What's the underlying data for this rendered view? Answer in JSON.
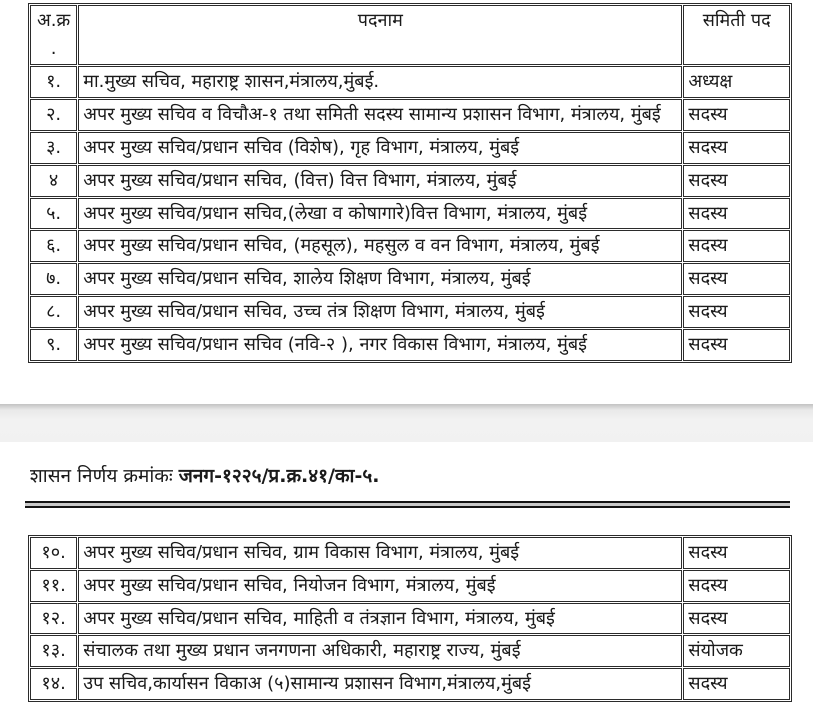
{
  "colors": {
    "text": "#1a1a1a",
    "table_border": "#2b2b2b",
    "page_band": "#f1f1f1",
    "band_edge": "#c3c3c3",
    "rule": "#141414",
    "background": "#ffffff"
  },
  "table1": {
    "header": {
      "sr_line1": "अ.क्र",
      "sr_line2": ".",
      "designation": "पदनाम",
      "post": "समिती पद"
    },
    "rows": [
      {
        "sr": "१.",
        "designation": "मा.मुख्य सचिव, महाराष्ट्र शासन,मंत्रालय,मुंबई.",
        "post": "अध्यक्ष"
      },
      {
        "sr": "२.",
        "designation": "अपर मुख्य सचिव व विचौअ-१ तथा समिती सदस्य सामान्य प्रशासन विभाग, मंत्रालय, मुंबई",
        "post": "सदस्य"
      },
      {
        "sr": "३.",
        "designation": "अपर मुख्य सचिव/प्रधान सचिव (विशेष), गृह विभाग, मंत्रालय, मुंबई",
        "post": "सदस्य"
      },
      {
        "sr": "४",
        "designation": "अपर मुख्य सचिव/प्रधान सचिव, (वित्त) वित्त विभाग, मंत्रालय, मुंबई",
        "post": "सदस्य"
      },
      {
        "sr": "५.",
        "designation": "अपर मुख्य सचिव/प्रधान सचिव,(लेखा व कोषागारे)वित्त विभाग, मंत्रालय, मुंबई",
        "post": "सदस्य"
      },
      {
        "sr": "६.",
        "designation": "अपर मुख्य सचिव/प्रधान सचिव, (महसूल), महसुल व वन विभाग, मंत्रालय, मुंबई",
        "post": "सदस्य"
      },
      {
        "sr": "७.",
        "designation": "अपर मुख्य सचिव/प्रधान सचिव, शालेय शिक्षण विभाग, मंत्रालय, मुंबई",
        "post": "सदस्य"
      },
      {
        "sr": "८.",
        "designation": "अपर मुख्य सचिव/प्रधान सचिव, उच्च तंत्र शिक्षण विभाग, मंत्रालय, मुंबई",
        "post": "सदस्य"
      },
      {
        "sr": "९.",
        "designation": "अपर मुख्य सचिव/प्रधान सचिव (नवि-२ ), नगर विकास विभाग, मंत्रालय, मुंबई",
        "post": "सदस्य"
      }
    ]
  },
  "gr_reference": {
    "prefix": "शासन निर्णय क्रमांकः ",
    "number": "जनग-१२२५/प्र.क्र.४१/का-५."
  },
  "table2": {
    "rows": [
      {
        "sr": "१०.",
        "designation": "अपर मुख्य सचिव/प्रधान सचिव, ग्राम विकास विभाग, मंत्रालय, मुंबई",
        "post": "सदस्य"
      },
      {
        "sr": "११.",
        "designation": "अपर मुख्य सचिव/प्रधान सचिव, नियोजन विभाग, मंत्रालय, मुंबई",
        "post": "सदस्य"
      },
      {
        "sr": "१२.",
        "designation": "अपर मुख्य सचिव/प्रधान सचिव, माहिती व तंत्रज्ञान विभाग, मंत्रालय, मुंबई",
        "post": "सदस्य"
      },
      {
        "sr": "१३.",
        "designation": "संचालक तथा मुख्य प्रधान जनगणना अधिकारी, महाराष्ट्र राज्य, मुंबई",
        "post": "संयोजक"
      },
      {
        "sr": "१४.",
        "designation": "उप सचिव,कार्यासन विकाअ (५)सामान्य प्रशासन विभाग,मंत्रालय,मुंबई",
        "post": "सदस्य"
      }
    ]
  }
}
